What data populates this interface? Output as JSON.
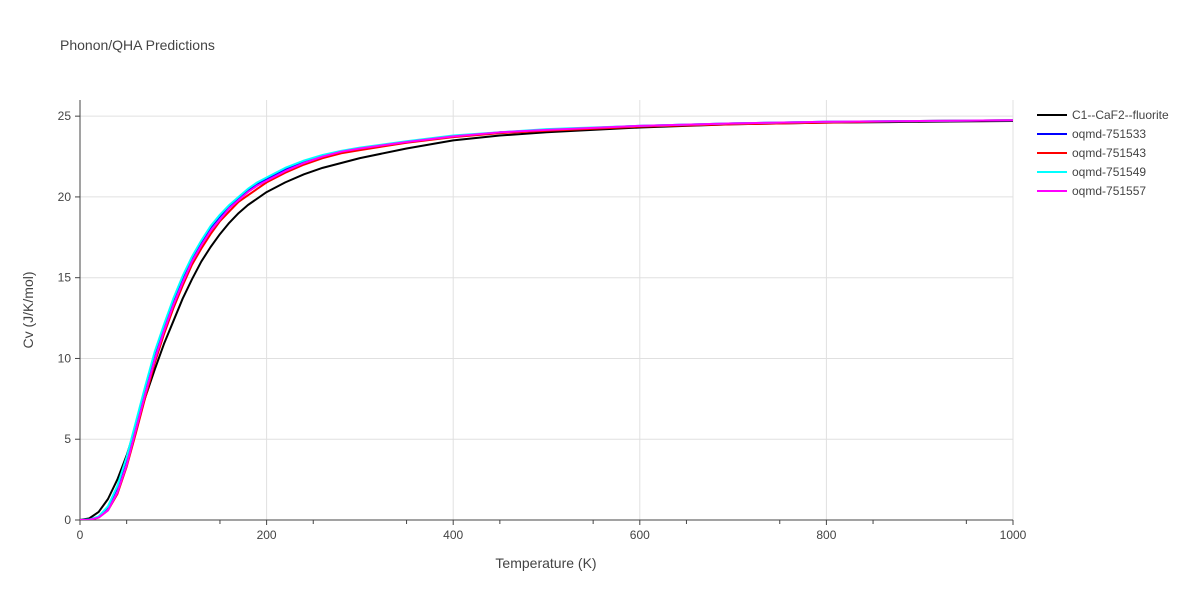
{
  "chart_data": {
    "type": "line",
    "title": "Phonon/QHA Predictions",
    "xlabel": "Temperature (K)",
    "ylabel": "Cv (J/K/mol)",
    "xlim": [
      0,
      1000
    ],
    "ylim": [
      0,
      26
    ],
    "xticks": [
      0,
      200,
      400,
      600,
      800,
      1000
    ],
    "yticks": [
      0,
      5,
      10,
      15,
      20,
      25
    ],
    "grid": true,
    "legend_position": "top-right",
    "series": [
      {
        "name": "C1--CaF2--fluorite",
        "color": "#000000",
        "x": [
          0,
          10,
          20,
          30,
          40,
          50,
          60,
          70,
          80,
          90,
          100,
          110,
          120,
          130,
          140,
          150,
          160,
          170,
          180,
          190,
          200,
          220,
          240,
          260,
          280,
          300,
          350,
          400,
          450,
          500,
          600,
          700,
          800,
          900,
          1000
        ],
        "y": [
          0,
          0.1,
          0.5,
          1.3,
          2.5,
          4.0,
          5.8,
          7.6,
          9.3,
          10.9,
          12.3,
          13.7,
          14.9,
          16.0,
          16.9,
          17.7,
          18.4,
          19.0,
          19.5,
          19.9,
          20.3,
          20.9,
          21.4,
          21.8,
          22.1,
          22.4,
          23.0,
          23.5,
          23.8,
          24.0,
          24.3,
          24.5,
          24.6,
          24.65,
          24.7
        ]
      },
      {
        "name": "oqmd-751533",
        "color": "#0000ff",
        "x": [
          0,
          10,
          20,
          30,
          40,
          50,
          60,
          70,
          80,
          90,
          100,
          110,
          120,
          130,
          140,
          150,
          160,
          170,
          180,
          190,
          200,
          220,
          240,
          260,
          280,
          300,
          350,
          400,
          450,
          500,
          600,
          700,
          800,
          900,
          1000
        ],
        "y": [
          0,
          0.02,
          0.2,
          0.8,
          2.0,
          3.8,
          6.0,
          8.2,
          10.3,
          12.0,
          13.6,
          15.0,
          16.2,
          17.2,
          18.1,
          18.8,
          19.4,
          19.9,
          20.4,
          20.8,
          21.1,
          21.7,
          22.2,
          22.5,
          22.8,
          23.0,
          23.4,
          23.75,
          24.0,
          24.15,
          24.4,
          24.55,
          24.65,
          24.7,
          24.75
        ]
      },
      {
        "name": "oqmd-751543",
        "color": "#ff0000",
        "x": [
          0,
          10,
          20,
          30,
          40,
          50,
          60,
          70,
          80,
          90,
          100,
          110,
          120,
          130,
          140,
          150,
          160,
          170,
          180,
          190,
          200,
          220,
          240,
          260,
          280,
          300,
          350,
          400,
          450,
          500,
          600,
          700,
          800,
          900,
          1000
        ],
        "y": [
          0,
          0.01,
          0.15,
          0.6,
          1.6,
          3.3,
          5.4,
          7.6,
          9.7,
          11.5,
          13.1,
          14.5,
          15.8,
          16.8,
          17.7,
          18.5,
          19.1,
          19.7,
          20.1,
          20.5,
          20.9,
          21.5,
          22.0,
          22.4,
          22.7,
          22.9,
          23.35,
          23.7,
          23.95,
          24.1,
          24.35,
          24.5,
          24.6,
          24.7,
          24.75
        ]
      },
      {
        "name": "oqmd-751549",
        "color": "#00ffff",
        "x": [
          0,
          10,
          20,
          30,
          40,
          50,
          60,
          70,
          80,
          90,
          100,
          110,
          120,
          130,
          140,
          150,
          160,
          170,
          180,
          190,
          200,
          220,
          240,
          260,
          280,
          300,
          350,
          400,
          450,
          500,
          600,
          700,
          800,
          900,
          1000
        ],
        "y": [
          0,
          0.02,
          0.22,
          0.85,
          2.1,
          3.9,
          6.1,
          8.3,
          10.4,
          12.1,
          13.7,
          15.1,
          16.3,
          17.3,
          18.2,
          18.9,
          19.5,
          20.0,
          20.5,
          20.9,
          21.2,
          21.8,
          22.25,
          22.6,
          22.85,
          23.05,
          23.45,
          23.8,
          24.0,
          24.2,
          24.4,
          24.55,
          24.65,
          24.7,
          24.75
        ]
      },
      {
        "name": "oqmd-751557",
        "color": "#ff00ff",
        "x": [
          0,
          10,
          20,
          30,
          40,
          50,
          60,
          70,
          80,
          90,
          100,
          110,
          120,
          130,
          140,
          150,
          160,
          170,
          180,
          190,
          200,
          220,
          240,
          260,
          280,
          300,
          350,
          400,
          450,
          500,
          600,
          700,
          800,
          900,
          1000
        ],
        "y": [
          0,
          0.01,
          0.15,
          0.6,
          1.7,
          3.4,
          5.6,
          7.8,
          9.9,
          11.7,
          13.3,
          14.7,
          16.0,
          17.0,
          17.9,
          18.6,
          19.3,
          19.8,
          20.3,
          20.7,
          21.0,
          21.6,
          22.1,
          22.5,
          22.8,
          23.0,
          23.4,
          23.75,
          24.0,
          24.15,
          24.4,
          24.55,
          24.65,
          24.7,
          24.75
        ]
      }
    ]
  }
}
